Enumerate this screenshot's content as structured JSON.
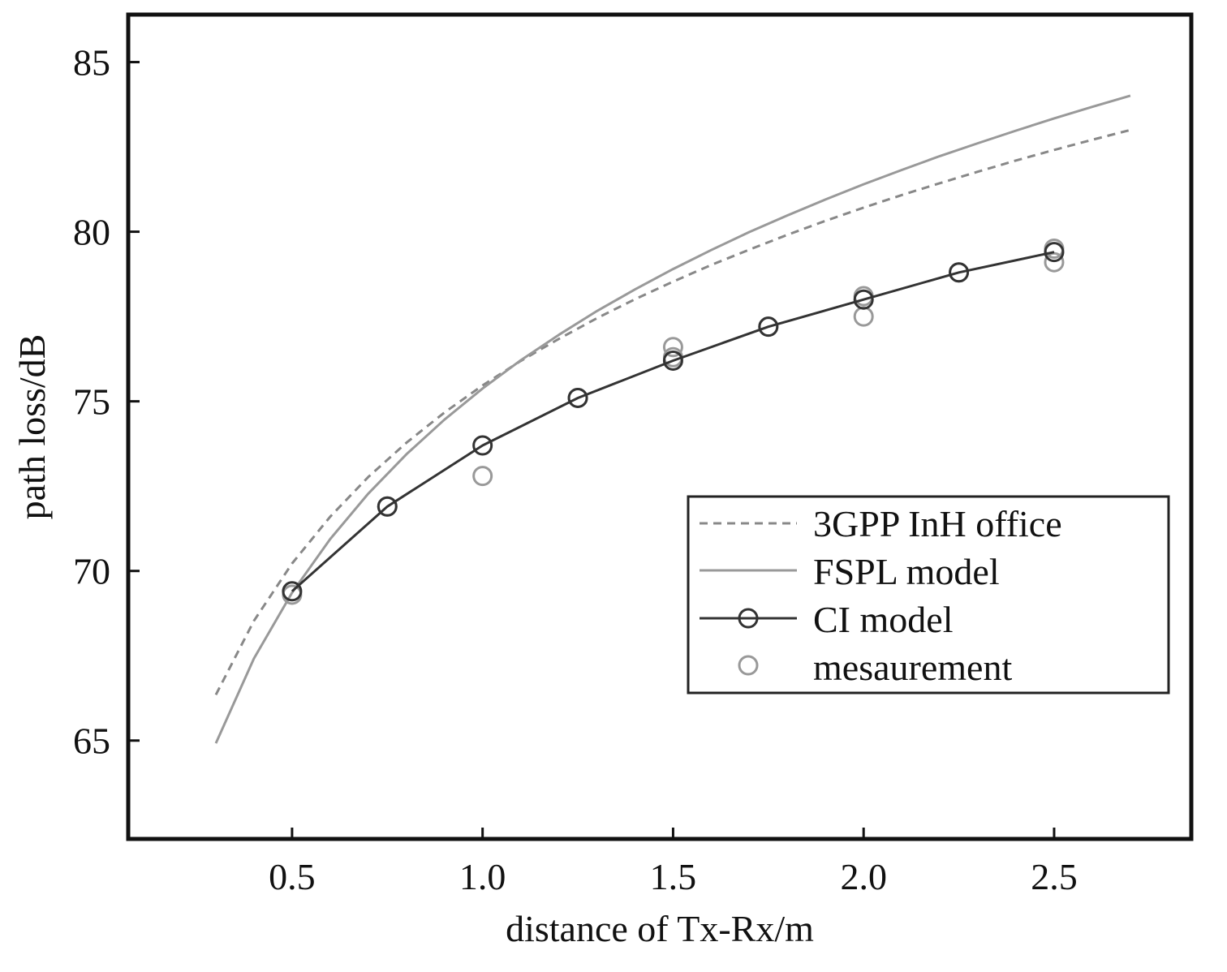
{
  "chart_data": {
    "type": "line",
    "xlabel": "distance of Tx-Rx/m",
    "ylabel": "path loss/dB",
    "xlim": [
      0.07,
      2.86
    ],
    "ylim": [
      62.1,
      86.4
    ],
    "xticks": [
      0.5,
      1.0,
      1.5,
      2.0,
      2.5
    ],
    "xtick_labels": [
      "0.5",
      "1.0",
      "1.5",
      "2.0",
      "2.5"
    ],
    "yticks": [
      65,
      70,
      75,
      80,
      85
    ],
    "ytick_labels": [
      "65",
      "70",
      "75",
      "80",
      "85"
    ],
    "legend_position": "lower-right",
    "series": [
      {
        "name": "3GPP InH office",
        "style": "dashed",
        "color": "#888888",
        "x": [
          0.3,
          0.4,
          0.5,
          0.6,
          0.7,
          0.8,
          0.9,
          1.0,
          1.1,
          1.2,
          1.3,
          1.4,
          1.5,
          1.6,
          1.7,
          1.8,
          1.9,
          2.0,
          2.1,
          2.2,
          2.3,
          2.4,
          2.5,
          2.6,
          2.7
        ],
        "y": [
          66.35,
          68.53,
          70.22,
          71.6,
          72.77,
          73.78,
          74.67,
          75.47,
          76.19,
          76.84,
          77.45,
          78.01,
          78.53,
          79.02,
          79.47,
          79.91,
          80.32,
          80.71,
          81.08,
          81.43,
          81.77,
          82.1,
          82.41,
          82.71,
          83.0
        ]
      },
      {
        "name": "FSPL model",
        "style": "solid",
        "color": "#999999",
        "x": [
          0.3,
          0.4,
          0.5,
          0.6,
          0.7,
          0.8,
          0.9,
          1.0,
          1.1,
          1.2,
          1.3,
          1.4,
          1.5,
          1.6,
          1.7,
          1.8,
          1.9,
          2.0,
          2.1,
          2.2,
          2.3,
          2.4,
          2.5,
          2.6,
          2.7
        ],
        "y": [
          64.92,
          67.42,
          69.36,
          70.94,
          72.28,
          73.44,
          74.46,
          75.38,
          76.21,
          76.96,
          77.66,
          78.3,
          78.9,
          79.46,
          79.99,
          80.48,
          80.95,
          81.4,
          81.82,
          82.23,
          82.61,
          82.98,
          83.34,
          83.68,
          84.01
        ]
      },
      {
        "name": "CI model",
        "style": "solid-with-circle-markers",
        "color": "#333333",
        "x": [
          0.5,
          0.75,
          1.0,
          1.25,
          1.5,
          1.75,
          2.0,
          2.25,
          2.5
        ],
        "y": [
          69.4,
          71.9,
          73.7,
          75.1,
          76.2,
          77.2,
          78.0,
          78.8,
          79.4
        ]
      },
      {
        "name": "mesaurement",
        "style": "circle-markers",
        "color": "#999999",
        "x": [
          0.5,
          0.75,
          1.0,
          1.25,
          1.5,
          1.5,
          1.75,
          2.0,
          2.0,
          2.25,
          2.5,
          2.5
        ],
        "y": [
          69.3,
          71.9,
          72.8,
          75.1,
          76.6,
          76.3,
          77.2,
          77.5,
          78.1,
          78.8,
          79.1,
          79.5
        ]
      }
    ]
  }
}
